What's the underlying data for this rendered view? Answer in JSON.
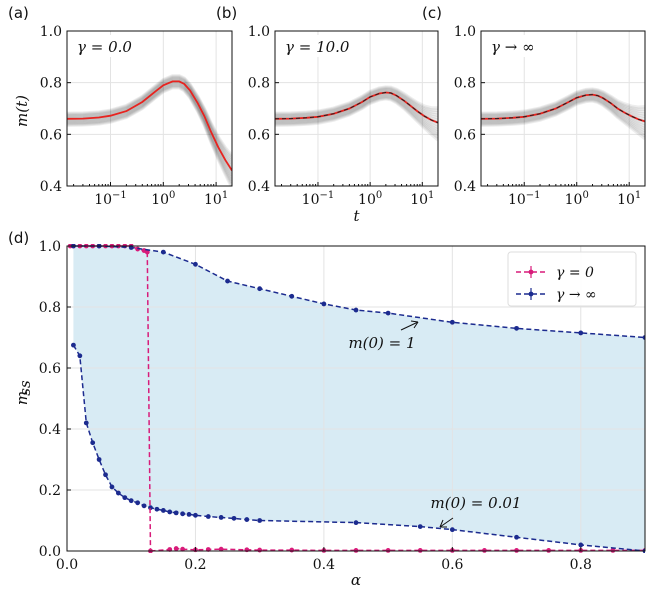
{
  "chart_data": [
    {
      "panel": "(a)",
      "type": "line",
      "annotation": "γ = 0.0",
      "xlabel": "",
      "ylabel": "m(t)",
      "xscale": "log",
      "xlim": [
        0.015,
        20
      ],
      "ylim": [
        0.4,
        1.0
      ],
      "yticks": [
        "0.4",
        "0.6",
        "0.8",
        "1.0"
      ],
      "xticks": [
        "10^-1",
        "10^0",
        "10^1"
      ],
      "grid": true,
      "series": [
        {
          "color": "#e8231f",
          "style": "solid",
          "x": [
            0.015,
            0.03,
            0.06,
            0.1,
            0.2,
            0.4,
            0.7,
            1.0,
            1.5,
            2.0,
            2.5,
            3.2,
            4.5,
            6,
            8,
            11,
            15,
            20
          ],
          "y": [
            0.66,
            0.661,
            0.665,
            0.672,
            0.69,
            0.725,
            0.765,
            0.79,
            0.805,
            0.805,
            0.795,
            0.77,
            0.72,
            0.67,
            0.61,
            0.55,
            0.5,
            0.46
          ]
        }
      ]
    },
    {
      "panel": "(b)",
      "type": "line",
      "annotation": "γ = 10.0",
      "xlabel": "t",
      "xscale": "log",
      "xlim": [
        0.015,
        20
      ],
      "ylim": [
        0.4,
        1.0
      ],
      "yticks": [
        "0.4",
        "0.6",
        "0.8",
        "1.0"
      ],
      "xticks": [
        "10^-1",
        "10^0",
        "10^1"
      ],
      "grid": true,
      "series": [
        {
          "color": "#e8231f",
          "style": "solid",
          "x": [
            0.015,
            0.03,
            0.06,
            0.1,
            0.2,
            0.4,
            0.7,
            1.0,
            1.5,
            2.0,
            2.5,
            3.2,
            4.5,
            6,
            8,
            11,
            15,
            20
          ],
          "y": [
            0.66,
            0.661,
            0.664,
            0.668,
            0.68,
            0.7,
            0.725,
            0.745,
            0.758,
            0.762,
            0.76,
            0.75,
            0.73,
            0.71,
            0.69,
            0.67,
            0.655,
            0.645
          ]
        }
      ]
    },
    {
      "panel": "(c)",
      "type": "line",
      "annotation": "γ → ∞",
      "xlabel": "",
      "xscale": "log",
      "xlim": [
        0.015,
        20
      ],
      "ylim": [
        0.4,
        1.0
      ],
      "yticks": [
        "0.4",
        "0.6",
        "0.8",
        "1.0"
      ],
      "xticks": [
        "10^-1",
        "10^0",
        "10^1"
      ],
      "grid": true,
      "series": [
        {
          "color": "#e8231f",
          "style": "solid",
          "x": [
            0.015,
            0.03,
            0.06,
            0.1,
            0.2,
            0.4,
            0.7,
            1.0,
            1.5,
            2.0,
            2.5,
            3.2,
            4.5,
            6,
            8,
            11,
            15,
            20
          ],
          "y": [
            0.66,
            0.661,
            0.664,
            0.668,
            0.68,
            0.7,
            0.725,
            0.742,
            0.752,
            0.754,
            0.75,
            0.74,
            0.72,
            0.7,
            0.685,
            0.67,
            0.658,
            0.65
          ]
        }
      ]
    },
    {
      "panel": "(d)",
      "type": "line",
      "xlabel": "α",
      "ylabel": "m_ss",
      "xlim": [
        0,
        0.9
      ],
      "ylim": [
        0,
        1.0
      ],
      "xticks": [
        "0.0",
        "0.2",
        "0.4",
        "0.6",
        "0.8"
      ],
      "yticks": [
        "0.0",
        "0.2",
        "0.4",
        "0.6",
        "0.8",
        "1.0"
      ],
      "grid": true,
      "legend": "top-right",
      "series": [
        {
          "name": "γ = 0",
          "color": "#d81b7a",
          "style": "dashed",
          "x": [
            0.005,
            0.01,
            0.02,
            0.03,
            0.04,
            0.05,
            0.06,
            0.07,
            0.08,
            0.09,
            0.1,
            0.11,
            0.12,
            0.125
          ],
          "y": [
            1.0,
            1.0,
            1.0,
            1.0,
            1.0,
            1.0,
            1.0,
            1.0,
            1.0,
            1.0,
            1.0,
            0.99,
            0.985,
            0.98
          ]
        },
        {
          "name": "γ = 0",
          "color": "#d81b7a",
          "style": "dashed",
          "x": [
            0.13,
            0.16,
            0.17,
            0.18,
            0.2,
            0.22,
            0.24,
            0.28,
            0.3,
            0.35,
            0.4,
            0.45,
            0.5,
            0.55,
            0.6,
            0.65,
            0.7,
            0.75,
            0.8,
            0.85,
            0.9
          ],
          "y": [
            0.0,
            0.005,
            0.008,
            0.006,
            0.004,
            0.005,
            0.006,
            0.004,
            0.003,
            0.003,
            0.002,
            0.002,
            0.002,
            0.002,
            0.002,
            0.002,
            0.002,
            0.002,
            0.002,
            0.002,
            0.002
          ]
        },
        {
          "name": "γ → ∞",
          "color": "#1c2b8f",
          "style": "dashed",
          "x": [
            0.01,
            0.05,
            0.1,
            0.15,
            0.2,
            0.25,
            0.3,
            0.35,
            0.4,
            0.45,
            0.5,
            0.6,
            0.7,
            0.8,
            0.9
          ],
          "y": [
            1.0,
            1.0,
            0.995,
            0.98,
            0.94,
            0.885,
            0.86,
            0.835,
            0.81,
            0.79,
            0.78,
            0.75,
            0.73,
            0.715,
            0.7
          ]
        },
        {
          "name": "γ → ∞",
          "color": "#1c2b8f",
          "style": "dashed",
          "x": [
            0.01,
            0.02,
            0.03,
            0.04,
            0.05,
            0.06,
            0.07,
            0.08,
            0.09,
            0.1,
            0.11,
            0.12,
            0.13,
            0.14,
            0.15,
            0.16,
            0.17,
            0.18,
            0.19,
            0.2,
            0.22,
            0.24,
            0.26,
            0.28,
            0.3,
            0.45,
            0.55,
            0.6,
            0.7,
            0.8,
            0.9
          ],
          "y": [
            0.675,
            0.64,
            0.42,
            0.355,
            0.3,
            0.25,
            0.21,
            0.19,
            0.175,
            0.165,
            0.158,
            0.148,
            0.142,
            0.137,
            0.133,
            0.128,
            0.125,
            0.122,
            0.12,
            0.117,
            0.113,
            0.11,
            0.107,
            0.103,
            0.1,
            0.093,
            0.08,
            0.07,
            0.045,
            0.02,
            0.0
          ]
        }
      ],
      "annotations": [
        {
          "text": "m(0) = 1"
        },
        {
          "text": "m(0) = 0.01"
        }
      ]
    }
  ]
}
